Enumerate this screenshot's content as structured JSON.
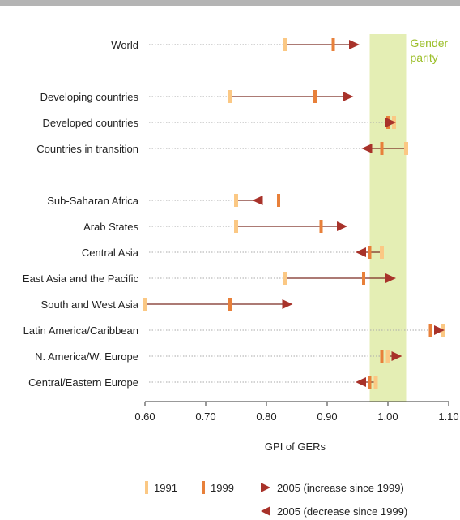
{
  "colors": {
    "marker_1991": "#fbc884",
    "marker_1999": "#e8803a",
    "marker_2005": "#a8322a",
    "connector": "#7a2a20",
    "dotted": "#aaaaaa",
    "parity_band": "#e4eeb4",
    "parity_text": "#9cbf2a"
  },
  "chart_data": {
    "type": "dot-arrow",
    "xlabel": "GPI of GERs",
    "xlim": [
      0.6,
      1.1
    ],
    "xticks": [
      "0.60",
      "0.70",
      "0.80",
      "0.90",
      "1.00",
      "1.10"
    ],
    "parity_band": {
      "from": 0.97,
      "to": 1.03,
      "label_lines": [
        "Gender",
        "parity"
      ]
    },
    "rows": [
      {
        "label": "World",
        "v1991": 0.83,
        "v1999": 0.91,
        "v2005": 0.94,
        "dir": "increase"
      },
      {
        "label": "",
        "spacer": true
      },
      {
        "label": "Developing countries",
        "v1991": 0.74,
        "v1999": 0.88,
        "v2005": 0.93,
        "dir": "increase"
      },
      {
        "label": "Developed countries",
        "v1991": 1.01,
        "v1999": 1.0,
        "v2005": 1.0,
        "dir": "increase"
      },
      {
        "label": "Countries in transition",
        "v1991": 1.03,
        "v1999": 0.99,
        "v2005": 0.97,
        "dir": "decrease"
      },
      {
        "label": "",
        "spacer": true
      },
      {
        "label": "Sub-Saharan Africa",
        "v1991": 0.75,
        "v1999": 0.82,
        "v2005": 0.79,
        "dir": "decrease"
      },
      {
        "label": "Arab States",
        "v1991": 0.75,
        "v1999": 0.89,
        "v2005": 0.92,
        "dir": "increase"
      },
      {
        "label": "Central Asia",
        "v1991": 0.99,
        "v1999": 0.97,
        "v2005": 0.96,
        "dir": "decrease"
      },
      {
        "label": "East Asia and the Pacific",
        "v1991": 0.83,
        "v1999": 0.96,
        "v2005": 1.0,
        "dir": "increase"
      },
      {
        "label": "South and West Asia",
        "v1991": 0.6,
        "v1999": 0.74,
        "v2005": 0.83,
        "dir": "increase"
      },
      {
        "label": "Latin America/Caribbean",
        "v1991": 1.09,
        "v1999": 1.07,
        "v2005": 1.08,
        "dir": "increase"
      },
      {
        "label": "N. America/W. Europe",
        "v1991": 1.0,
        "v1999": 0.99,
        "v2005": 1.01,
        "dir": "increase"
      },
      {
        "label": "Central/Eastern Europe",
        "v1991": 0.98,
        "v1999": 0.97,
        "v2005": 0.96,
        "dir": "decrease"
      }
    ],
    "legend": [
      {
        "key": "1991",
        "label": "1991"
      },
      {
        "key": "1999",
        "label": "1999"
      },
      {
        "key": "2005inc",
        "label": "2005 (increase since 1999)"
      },
      {
        "key": "2005dec",
        "label": "2005 (decrease since 1999)"
      }
    ]
  }
}
